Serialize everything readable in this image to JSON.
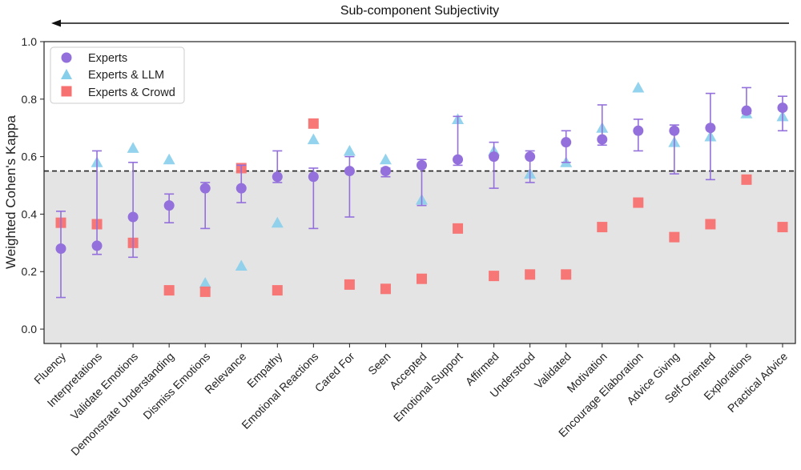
{
  "chart_data": {
    "type": "scatter",
    "top_annotation": "Sub-component Subjectivity",
    "ylabel": "Weighted Cohen's Kappa",
    "xlabel": "",
    "ylim": [
      -0.05,
      1.0
    ],
    "yticks": [
      "0.0",
      "0.2",
      "0.4",
      "0.6",
      "0.8",
      "1.0"
    ],
    "threshold": 0.55,
    "shaded_below_threshold": true,
    "grid": false,
    "legend_position": "top-left",
    "categories": [
      "Fluency",
      "Interpretations",
      "Validate Emotions",
      "Demonstrate Understanding",
      "Dismiss Emotions",
      "Relevance",
      "Empathy",
      "Emotional Reactions",
      "Cared For",
      "Seen",
      "Accepted",
      "Emotional Support",
      "Affirmed",
      "Understood",
      "Validated",
      "Motivation",
      "Encourage Elaboration",
      "Advice Giving",
      "Self-Oriented",
      "Explorations",
      "Practical Advice"
    ],
    "series": [
      {
        "name": "Experts",
        "marker": "circle",
        "color": "#9370DB",
        "values": [
          0.28,
          0.29,
          0.39,
          0.43,
          0.49,
          0.49,
          0.53,
          0.53,
          0.55,
          0.55,
          0.57,
          0.59,
          0.6,
          0.6,
          0.65,
          0.66,
          0.69,
          0.69,
          0.7,
          0.76,
          0.77
        ],
        "error_low": [
          0.11,
          0.26,
          0.25,
          0.37,
          0.35,
          0.44,
          0.51,
          0.35,
          0.39,
          0.53,
          0.43,
          0.57,
          0.49,
          0.51,
          0.58,
          0.64,
          0.62,
          0.54,
          0.52,
          0.75,
          0.69
        ],
        "error_high": [
          0.41,
          0.62,
          0.58,
          0.47,
          0.51,
          0.57,
          0.62,
          0.56,
          0.6,
          0.56,
          0.59,
          0.74,
          0.65,
          0.62,
          0.69,
          0.78,
          0.73,
          0.71,
          0.82,
          0.84,
          0.81
        ]
      },
      {
        "name": "Experts & LLM",
        "marker": "triangle",
        "color": "#87CEEB",
        "values": [
          null,
          0.58,
          0.63,
          0.59,
          0.16,
          0.22,
          0.37,
          0.66,
          0.62,
          0.59,
          0.45,
          0.73,
          0.62,
          0.54,
          0.58,
          0.7,
          0.84,
          0.65,
          0.67,
          0.75,
          0.74
        ]
      },
      {
        "name": "Experts & Crowd",
        "marker": "square",
        "color": "#F87171",
        "values": [
          0.37,
          0.365,
          0.3,
          0.135,
          0.13,
          0.56,
          0.135,
          0.715,
          0.155,
          0.14,
          0.175,
          0.35,
          0.185,
          0.19,
          0.19,
          0.355,
          0.44,
          0.32,
          0.365,
          0.52,
          0.355
        ]
      }
    ]
  }
}
